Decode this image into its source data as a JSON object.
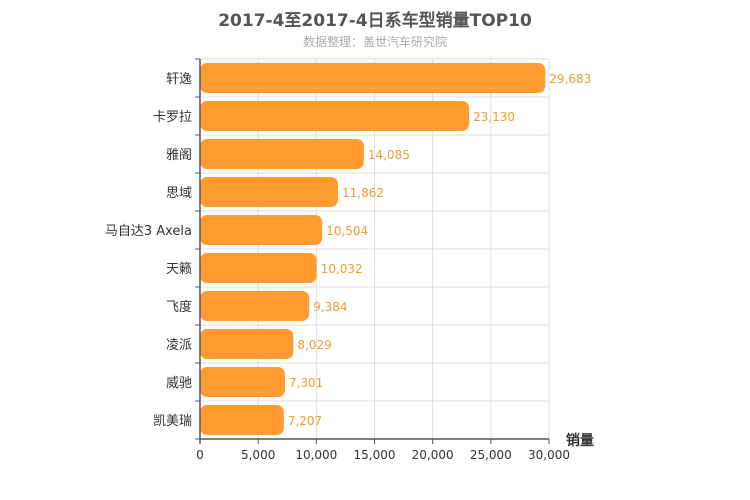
{
  "chart_data": {
    "type": "bar",
    "orientation": "horizontal",
    "title": "2017-4至2017-4日系车型销量TOP10",
    "subtitle": "数据整理：盖世汽车研究院",
    "xlabel": "销量",
    "ylabel": "",
    "xlim": [
      0,
      30000
    ],
    "xticks": [
      0,
      5000,
      10000,
      15000,
      20000,
      25000,
      30000
    ],
    "xtick_labels": [
      "0",
      "5,000",
      "10,000",
      "15,000",
      "20,000",
      "25,000",
      "30,000"
    ],
    "categories": [
      "轩逸",
      "卡罗拉",
      "雅阁",
      "思域",
      "马自达3 Axela",
      "天籁",
      "飞度",
      "凌派",
      "威驰",
      "凯美瑞"
    ],
    "values": [
      29683,
      23130,
      14085,
      11862,
      10504,
      10032,
      9384,
      8029,
      7301,
      7207
    ],
    "value_labels": [
      "29,683",
      "23,130",
      "14,085",
      "11,862",
      "10,504",
      "10,032",
      "9,384",
      "8,029",
      "7,301",
      "7,207"
    ],
    "bar_color": "#ff9b31",
    "label_color": "#f29b30",
    "grid": true
  }
}
